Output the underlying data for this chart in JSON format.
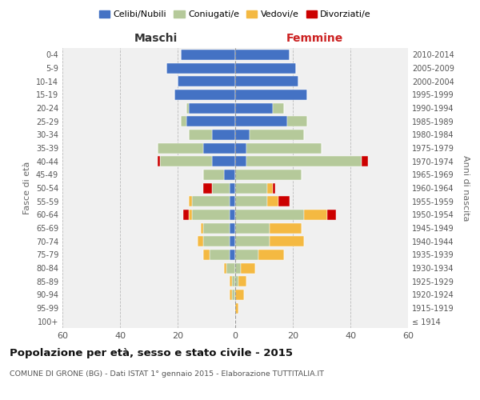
{
  "age_groups": [
    "100+",
    "95-99",
    "90-94",
    "85-89",
    "80-84",
    "75-79",
    "70-74",
    "65-69",
    "60-64",
    "55-59",
    "50-54",
    "45-49",
    "40-44",
    "35-39",
    "30-34",
    "25-29",
    "20-24",
    "15-19",
    "10-14",
    "5-9",
    "0-4"
  ],
  "birth_years": [
    "≤ 1914",
    "1915-1919",
    "1920-1924",
    "1925-1929",
    "1930-1934",
    "1935-1939",
    "1940-1944",
    "1945-1949",
    "1950-1954",
    "1955-1959",
    "1960-1964",
    "1965-1969",
    "1970-1974",
    "1975-1979",
    "1980-1984",
    "1985-1989",
    "1990-1994",
    "1995-1999",
    "2000-2004",
    "2005-2009",
    "2010-2014"
  ],
  "maschi": {
    "celibi": [
      0,
      0,
      0,
      0,
      0,
      2,
      2,
      2,
      2,
      2,
      2,
      4,
      8,
      11,
      8,
      17,
      16,
      21,
      20,
      24,
      19
    ],
    "coniugati": [
      0,
      0,
      1,
      1,
      3,
      7,
      9,
      9,
      13,
      13,
      6,
      7,
      18,
      16,
      8,
      2,
      1,
      0,
      0,
      0,
      0
    ],
    "vedovi": [
      0,
      0,
      1,
      1,
      1,
      2,
      2,
      1,
      1,
      1,
      0,
      0,
      0,
      0,
      0,
      0,
      0,
      0,
      0,
      0,
      0
    ],
    "divorziati": [
      0,
      0,
      0,
      0,
      0,
      0,
      0,
      0,
      2,
      0,
      3,
      0,
      1,
      0,
      0,
      0,
      0,
      0,
      0,
      0,
      0
    ]
  },
  "femmine": {
    "nubili": [
      0,
      0,
      0,
      0,
      0,
      0,
      0,
      0,
      0,
      0,
      0,
      0,
      4,
      4,
      5,
      18,
      13,
      25,
      22,
      21,
      19
    ],
    "coniugate": [
      0,
      0,
      0,
      1,
      2,
      8,
      12,
      12,
      24,
      11,
      11,
      23,
      40,
      26,
      19,
      7,
      4,
      0,
      0,
      0,
      0
    ],
    "vedove": [
      0,
      1,
      3,
      3,
      5,
      9,
      12,
      11,
      8,
      4,
      2,
      0,
      0,
      0,
      0,
      0,
      0,
      0,
      0,
      0,
      0
    ],
    "divorziate": [
      0,
      0,
      0,
      0,
      0,
      0,
      0,
      0,
      3,
      4,
      1,
      0,
      2,
      0,
      0,
      0,
      0,
      0,
      0,
      0,
      0
    ]
  },
  "colors": {
    "celibi": "#4472c4",
    "coniugati": "#b5c99a",
    "vedovi": "#f4b942",
    "divorziati": "#cc0000"
  },
  "legend_labels": [
    "Celibi/Nubili",
    "Coniugati/e",
    "Vedovi/e",
    "Divorziati/e"
  ],
  "title": "Popolazione per età, sesso e stato civile - 2015",
  "subtitle": "COMUNE DI GRONE (BG) - Dati ISTAT 1° gennaio 2015 - Elaborazione TUTTITALIA.IT",
  "maschi_label": "Maschi",
  "femmine_label": "Femmine",
  "ylabel_left": "Fasce di età",
  "ylabel_right": "Anni di nascita",
  "xlim": 60,
  "bg_color": "#f0f0f0"
}
